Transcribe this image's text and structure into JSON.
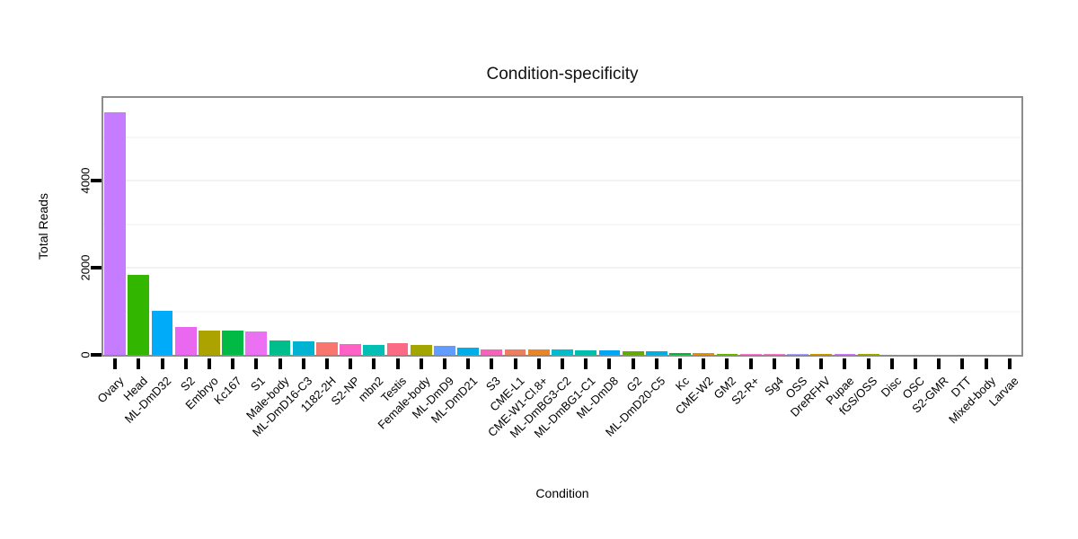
{
  "chart_data": {
    "type": "bar",
    "title": "Condition-specificity",
    "xlabel": "Condition",
    "ylabel": "Total Reads",
    "ylim": [
      0,
      5900
    ],
    "yticks": [
      0,
      2000,
      4000
    ],
    "minor_gridlines": [
      1000,
      3000,
      5000
    ],
    "major_gridlines": [
      2000,
      4000
    ],
    "legend_position": "none",
    "panel_border_color": "#8C8C8C",
    "tick_color": "#000000",
    "categories": [
      "Ovary",
      "Head",
      "ML-DmD32",
      "S2",
      "Embryo",
      "Kc167",
      "S1",
      "Male-body",
      "ML-DmD16-C3",
      "1182-2H",
      "S2-NP",
      "mbn2",
      "Testis",
      "Female-body",
      "ML-DmD9",
      "ML-DmD21",
      "S3",
      "CME-L1",
      "CME-W1-Cl.8+",
      "ML-DmBG3-C2",
      "ML-DmBG1-C1",
      "ML-DmD8",
      "G2",
      "ML-DmD20-C5",
      "Kc",
      "CME-W2",
      "GM2",
      "S2-R+",
      "Sg4",
      "OSS",
      "DreRFHV",
      "Pupae",
      "fGS/OSS",
      "Disc",
      "OSC",
      "S2-GMR",
      "DTT",
      "Mixed-body",
      "Larvae"
    ],
    "values": [
      5580,
      1840,
      1010,
      640,
      565,
      560,
      535,
      325,
      305,
      285,
      245,
      230,
      260,
      225,
      205,
      165,
      130,
      125,
      128,
      115,
      102,
      98,
      78,
      74,
      50,
      32,
      28,
      26,
      25,
      24,
      24,
      22,
      20,
      0,
      0,
      0,
      0,
      0,
      0
    ],
    "colors": [
      "#C57CFE",
      "#33B600",
      "#00ACFA",
      "#EA68EF",
      "#ACA300",
      "#00BA45",
      "#EB70F2",
      "#00BD8D",
      "#00B3D2",
      "#F8766D",
      "#FF61C7",
      "#00C0B4",
      "#FB6B85",
      "#A3A500",
      "#619CFF",
      "#00AEE8",
      "#F763B8",
      "#EE7E5D",
      "#E88526",
      "#00BCCC",
      "#00BDAD",
      "#00A5F4",
      "#63AB00",
      "#00AFE2",
      "#00B92F",
      "#E69000",
      "#62B200",
      "#F978C8",
      "#F878C3",
      "#A4A0F7",
      "#C99800",
      "#CC7AF9",
      "#9DA700",
      "#CCCCCC",
      "#CCCCCC",
      "#CCCCCC",
      "#CCCCCC",
      "#CCCCCC",
      "#CCCCCC"
    ]
  }
}
